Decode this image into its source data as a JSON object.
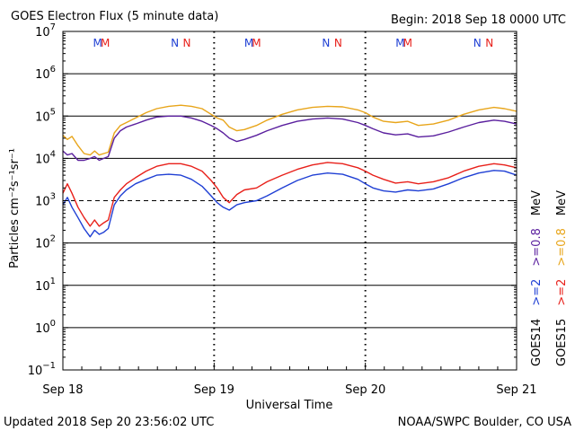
{
  "header": {
    "title": "GOES Electron Flux (5 minute data)",
    "begin": "Begin: 2018 Sep 18 0000 UTC"
  },
  "footer": {
    "updated": "Updated 2018 Sep 20 23:56:02 UTC",
    "credit": "NOAA/SWPC Boulder, CO USA"
  },
  "colors": {
    "goes14_ge2": "#1f3fd4",
    "goes15_ge2": "#e8201a",
    "goes14_ge08": "#5a1f9e",
    "goes15_ge08": "#e8a51a",
    "manoeuvre_m14": "#1f3fd4",
    "manoeuvre_m15": "#e8201a"
  },
  "chart_data": {
    "type": "line",
    "title": "GOES Electron Flux (5 minute data)",
    "xlabel": "Universal Time",
    "ylabel": "Particles cm⁻²s⁻¹sr⁻¹",
    "x_ticks": [
      "Sep 18",
      "Sep 19",
      "Sep 20",
      "Sep 21"
    ],
    "xlim_days": [
      0,
      3
    ],
    "y_scale": "log",
    "ylim": [
      0.1,
      10000000
    ],
    "y_ticks": [
      {
        "base": "10",
        "exp": "7"
      },
      {
        "base": "10",
        "exp": "6"
      },
      {
        "base": "10",
        "exp": "5"
      },
      {
        "base": "10",
        "exp": "4"
      },
      {
        "base": "10",
        "exp": "3"
      },
      {
        "base": "10",
        "exp": "2"
      },
      {
        "base": "10",
        "exp": "1"
      },
      {
        "base": "10",
        "exp": "0"
      },
      {
        "base": "10",
        "exp": "−1"
      }
    ],
    "threshold_line": 1000,
    "legend": {
      "placement": "right-vertical",
      "entries": [
        {
          "sat": "GOES14",
          "parts": [
            ">=2",
            ">=0.8",
            "MeV"
          ]
        },
        {
          "sat": "GOES15",
          "parts": [
            ">=2",
            ">=0.8",
            "MeV"
          ]
        }
      ]
    },
    "markers": [
      {
        "label": "M",
        "day": 0.23,
        "sat": "GOES14"
      },
      {
        "label": "M",
        "day": 0.28,
        "sat": "GOES15"
      },
      {
        "label": "N",
        "day": 0.74,
        "sat": "GOES14"
      },
      {
        "label": "N",
        "day": 0.82,
        "sat": "GOES15"
      },
      {
        "label": "M",
        "day": 1.23,
        "sat": "GOES14"
      },
      {
        "label": "M",
        "day": 1.28,
        "sat": "GOES15"
      },
      {
        "label": "N",
        "day": 1.74,
        "sat": "GOES14"
      },
      {
        "label": "N",
        "day": 1.82,
        "sat": "GOES15"
      },
      {
        "label": "M",
        "day": 2.23,
        "sat": "GOES14"
      },
      {
        "label": "M",
        "day": 2.28,
        "sat": "GOES15"
      },
      {
        "label": "N",
        "day": 2.74,
        "sat": "GOES14"
      },
      {
        "label": "N",
        "day": 2.82,
        "sat": "GOES15"
      }
    ],
    "series": [
      {
        "name": "GOES15 >=0.8 MeV",
        "color": "#e8a51a",
        "points": [
          [
            0.0,
            35000
          ],
          [
            0.03,
            28000
          ],
          [
            0.06,
            33000
          ],
          [
            0.1,
            20000
          ],
          [
            0.14,
            13000
          ],
          [
            0.18,
            12000
          ],
          [
            0.21,
            15000
          ],
          [
            0.24,
            12000
          ],
          [
            0.27,
            13000
          ],
          [
            0.3,
            14000
          ],
          [
            0.34,
            40000
          ],
          [
            0.38,
            60000
          ],
          [
            0.42,
            70000
          ],
          [
            0.48,
            90000
          ],
          [
            0.55,
            120000
          ],
          [
            0.62,
            150000
          ],
          [
            0.7,
            170000
          ],
          [
            0.78,
            180000
          ],
          [
            0.85,
            170000
          ],
          [
            0.92,
            150000
          ],
          [
            0.98,
            110000
          ],
          [
            1.02,
            90000
          ],
          [
            1.06,
            80000
          ],
          [
            1.1,
            55000
          ],
          [
            1.15,
            45000
          ],
          [
            1.2,
            48000
          ],
          [
            1.28,
            60000
          ],
          [
            1.35,
            80000
          ],
          [
            1.45,
            110000
          ],
          [
            1.55,
            140000
          ],
          [
            1.65,
            160000
          ],
          [
            1.75,
            170000
          ],
          [
            1.85,
            165000
          ],
          [
            1.95,
            140000
          ],
          [
            2.0,
            120000
          ],
          [
            2.05,
            95000
          ],
          [
            2.12,
            75000
          ],
          [
            2.2,
            70000
          ],
          [
            2.28,
            75000
          ],
          [
            2.35,
            60000
          ],
          [
            2.45,
            65000
          ],
          [
            2.55,
            80000
          ],
          [
            2.65,
            110000
          ],
          [
            2.75,
            140000
          ],
          [
            2.85,
            160000
          ],
          [
            2.92,
            150000
          ],
          [
            3.0,
            130000
          ]
        ]
      },
      {
        "name": "GOES14 >=0.8 MeV",
        "color": "#5a1f9e",
        "points": [
          [
            0.0,
            15000
          ],
          [
            0.03,
            12000
          ],
          [
            0.06,
            13000
          ],
          [
            0.1,
            9000
          ],
          [
            0.14,
            9000
          ],
          [
            0.18,
            10000
          ],
          [
            0.21,
            11000
          ],
          [
            0.24,
            9000
          ],
          [
            0.27,
            10000
          ],
          [
            0.3,
            11000
          ],
          [
            0.34,
            30000
          ],
          [
            0.38,
            45000
          ],
          [
            0.42,
            55000
          ],
          [
            0.48,
            65000
          ],
          [
            0.55,
            80000
          ],
          [
            0.62,
            95000
          ],
          [
            0.7,
            100000
          ],
          [
            0.78,
            100000
          ],
          [
            0.85,
            90000
          ],
          [
            0.92,
            75000
          ],
          [
            0.98,
            60000
          ],
          [
            1.02,
            50000
          ],
          [
            1.06,
            40000
          ],
          [
            1.1,
            30000
          ],
          [
            1.15,
            25000
          ],
          [
            1.2,
            28000
          ],
          [
            1.28,
            35000
          ],
          [
            1.35,
            45000
          ],
          [
            1.45,
            60000
          ],
          [
            1.55,
            75000
          ],
          [
            1.65,
            85000
          ],
          [
            1.75,
            90000
          ],
          [
            1.85,
            85000
          ],
          [
            1.95,
            70000
          ],
          [
            2.0,
            60000
          ],
          [
            2.05,
            50000
          ],
          [
            2.12,
            40000
          ],
          [
            2.2,
            36000
          ],
          [
            2.28,
            38000
          ],
          [
            2.35,
            32000
          ],
          [
            2.45,
            34000
          ],
          [
            2.55,
            42000
          ],
          [
            2.65,
            55000
          ],
          [
            2.75,
            70000
          ],
          [
            2.85,
            80000
          ],
          [
            2.92,
            75000
          ],
          [
            3.0,
            65000
          ]
        ]
      },
      {
        "name": "GOES15 >=2 MeV",
        "color": "#e8201a",
        "points": [
          [
            0.0,
            1500
          ],
          [
            0.03,
            2500
          ],
          [
            0.06,
            1500
          ],
          [
            0.1,
            700
          ],
          [
            0.14,
            400
          ],
          [
            0.18,
            250
          ],
          [
            0.21,
            350
          ],
          [
            0.24,
            250
          ],
          [
            0.27,
            300
          ],
          [
            0.3,
            350
          ],
          [
            0.34,
            1200
          ],
          [
            0.38,
            1800
          ],
          [
            0.42,
            2500
          ],
          [
            0.48,
            3500
          ],
          [
            0.55,
            5000
          ],
          [
            0.62,
            6500
          ],
          [
            0.7,
            7500
          ],
          [
            0.78,
            7500
          ],
          [
            0.85,
            6500
          ],
          [
            0.92,
            5000
          ],
          [
            0.98,
            3000
          ],
          [
            1.02,
            2000
          ],
          [
            1.06,
            1200
          ],
          [
            1.1,
            900
          ],
          [
            1.15,
            1400
          ],
          [
            1.2,
            1800
          ],
          [
            1.28,
            2000
          ],
          [
            1.35,
            2800
          ],
          [
            1.45,
            4000
          ],
          [
            1.55,
            5500
          ],
          [
            1.65,
            7000
          ],
          [
            1.75,
            8000
          ],
          [
            1.85,
            7500
          ],
          [
            1.95,
            6000
          ],
          [
            2.0,
            5000
          ],
          [
            2.05,
            4000
          ],
          [
            2.12,
            3200
          ],
          [
            2.2,
            2600
          ],
          [
            2.28,
            2800
          ],
          [
            2.35,
            2500
          ],
          [
            2.45,
            2800
          ],
          [
            2.55,
            3500
          ],
          [
            2.65,
            5000
          ],
          [
            2.75,
            6500
          ],
          [
            2.85,
            7500
          ],
          [
            2.92,
            7000
          ],
          [
            3.0,
            6000
          ]
        ]
      },
      {
        "name": "GOES14 >=2 MeV",
        "color": "#1f3fd4",
        "points": [
          [
            0.0,
            800
          ],
          [
            0.03,
            1200
          ],
          [
            0.06,
            700
          ],
          [
            0.1,
            400
          ],
          [
            0.14,
            220
          ],
          [
            0.18,
            140
          ],
          [
            0.21,
            200
          ],
          [
            0.24,
            160
          ],
          [
            0.27,
            180
          ],
          [
            0.3,
            220
          ],
          [
            0.34,
            800
          ],
          [
            0.38,
            1300
          ],
          [
            0.42,
            1800
          ],
          [
            0.48,
            2500
          ],
          [
            0.55,
            3200
          ],
          [
            0.62,
            4000
          ],
          [
            0.7,
            4200
          ],
          [
            0.78,
            4000
          ],
          [
            0.85,
            3200
          ],
          [
            0.92,
            2200
          ],
          [
            0.98,
            1300
          ],
          [
            1.02,
            900
          ],
          [
            1.06,
            700
          ],
          [
            1.1,
            600
          ],
          [
            1.15,
            800
          ],
          [
            1.2,
            900
          ],
          [
            1.28,
            1000
          ],
          [
            1.35,
            1300
          ],
          [
            1.45,
            2000
          ],
          [
            1.55,
            3000
          ],
          [
            1.65,
            4000
          ],
          [
            1.75,
            4500
          ],
          [
            1.85,
            4200
          ],
          [
            1.95,
            3200
          ],
          [
            2.0,
            2500
          ],
          [
            2.05,
            2000
          ],
          [
            2.12,
            1700
          ],
          [
            2.2,
            1600
          ],
          [
            2.28,
            1800
          ],
          [
            2.35,
            1700
          ],
          [
            2.45,
            1900
          ],
          [
            2.55,
            2500
          ],
          [
            2.65,
            3500
          ],
          [
            2.75,
            4500
          ],
          [
            2.85,
            5200
          ],
          [
            2.92,
            5000
          ],
          [
            3.0,
            4000
          ]
        ]
      }
    ]
  }
}
